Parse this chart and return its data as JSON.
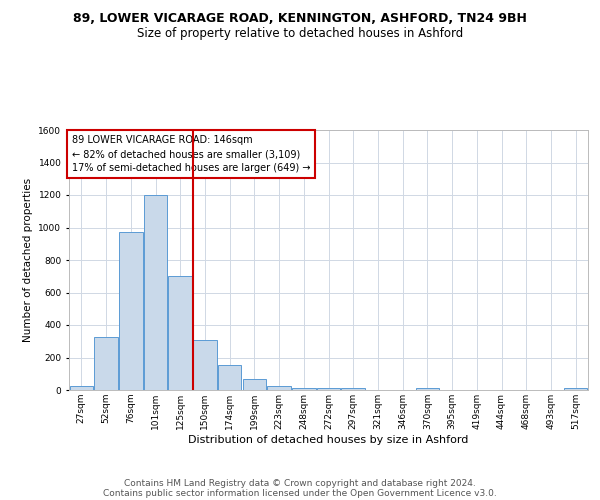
{
  "title1": "89, LOWER VICARAGE ROAD, KENNINGTON, ASHFORD, TN24 9BH",
  "title2": "Size of property relative to detached houses in Ashford",
  "xlabel": "Distribution of detached houses by size in Ashford",
  "ylabel": "Number of detached properties",
  "categories": [
    "27sqm",
    "52sqm",
    "76sqm",
    "101sqm",
    "125sqm",
    "150sqm",
    "174sqm",
    "199sqm",
    "223sqm",
    "248sqm",
    "272sqm",
    "297sqm",
    "321sqm",
    "346sqm",
    "370sqm",
    "395sqm",
    "419sqm",
    "444sqm",
    "468sqm",
    "493sqm",
    "517sqm"
  ],
  "values": [
    25,
    325,
    970,
    1200,
    700,
    310,
    155,
    65,
    25,
    15,
    10,
    10,
    0,
    0,
    10,
    0,
    0,
    0,
    0,
    0,
    10
  ],
  "bar_color": "#c9d9ea",
  "bar_edge_color": "#5b9bd5",
  "annotation_text": "89 LOWER VICARAGE ROAD: 146sqm\n← 82% of detached houses are smaller (3,109)\n17% of semi-detached houses are larger (649) →",
  "annotation_box_color": "#ffffff",
  "annotation_box_edge": "#cc0000",
  "vline_color": "#cc0000",
  "vline_x_index": 4.5,
  "ylim": [
    0,
    1600
  ],
  "yticks": [
    0,
    200,
    400,
    600,
    800,
    1000,
    1200,
    1400,
    1600
  ],
  "footer1": "Contains HM Land Registry data © Crown copyright and database right 2024.",
  "footer2": "Contains public sector information licensed under the Open Government Licence v3.0.",
  "bg_color": "#ffffff",
  "grid_color": "#d0d8e4",
  "title1_fontsize": 9,
  "title2_fontsize": 8.5,
  "ylabel_fontsize": 7.5,
  "xlabel_fontsize": 8,
  "tick_fontsize": 6.5,
  "annotation_fontsize": 7,
  "footer_fontsize": 6.5
}
